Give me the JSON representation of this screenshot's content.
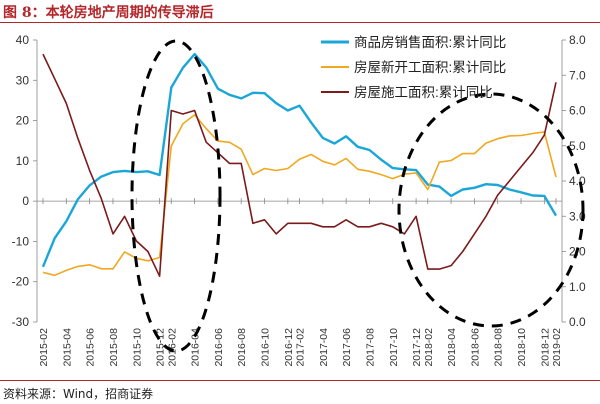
{
  "figure": {
    "title": "图 8：本轮房地产周期的传导滞后",
    "source": "资料来源：Wind，招商证券"
  },
  "chart_data": {
    "type": "line",
    "x": [
      "2015-02",
      "2015-03",
      "2015-04",
      "2015-05",
      "2015-06",
      "2015-07",
      "2015-08",
      "2015-09",
      "2015-10",
      "2015-11",
      "2015-12",
      "2016-02",
      "2016-03",
      "2016-04",
      "2016-05",
      "2016-06",
      "2016-07",
      "2016-08",
      "2016-09",
      "2016-10",
      "2016-11",
      "2016-12",
      "2017-02",
      "2017-03",
      "2017-04",
      "2017-05",
      "2017-06",
      "2017-07",
      "2017-08",
      "2017-09",
      "2017-10",
      "2017-11",
      "2017-12",
      "2018-02",
      "2018-03",
      "2018-04",
      "2018-05",
      "2018-06",
      "2018-07",
      "2018-08",
      "2018-09",
      "2018-10",
      "2018-11",
      "2018-12",
      "2019-02"
    ],
    "xticks": [
      "2015-02",
      "2015-04",
      "2015-06",
      "2015-08",
      "2015-10",
      "2015-12",
      "2016-02",
      "2016-04",
      "2016-06",
      "2016-08",
      "2016-10",
      "2016-12",
      "2017-02",
      "2017-04",
      "2017-06",
      "2017-08",
      "2017-10",
      "2017-12",
      "2018-02",
      "2018-04",
      "2018-06",
      "2018-08",
      "2018-10",
      "2018-12",
      "2019-02"
    ],
    "ylim_left": [
      -30,
      40
    ],
    "yticks_left": [
      -30,
      -20,
      -10,
      0,
      10,
      20,
      30,
      40
    ],
    "ylim_right": [
      0,
      8
    ],
    "yticks_right": [
      "0.0",
      "1.0",
      "2.0",
      "3.0",
      "4.0",
      "5.0",
      "6.0",
      "7.0",
      "8.0"
    ],
    "grid": false,
    "legend_position": "top-right",
    "series": [
      {
        "name": "商品房销售面积:累计同比",
        "axis": "left",
        "color": "#1aa7d8",
        "values": [
          -16.3,
          -9.2,
          -5.0,
          0.5,
          3.9,
          6.1,
          7.2,
          7.5,
          7.2,
          7.4,
          6.5,
          28.2,
          33.1,
          36.5,
          33.2,
          27.9,
          26.4,
          25.5,
          26.9,
          26.8,
          24.3,
          22.5,
          23.7,
          19.5,
          15.7,
          14.3,
          16.1,
          13.5,
          12.7,
          10.3,
          8.2,
          7.9,
          7.7,
          4.1,
          3.6,
          1.3,
          2.9,
          3.3,
          4.2,
          4.0,
          2.9,
          2.2,
          1.4,
          1.3,
          -3.6
        ]
      },
      {
        "name": "房屋新开工面积:累计同比",
        "axis": "left",
        "color": "#f0a820",
        "values": [
          -17.7,
          -18.4,
          -17.2,
          -16.2,
          -15.8,
          -16.8,
          -16.8,
          -12.6,
          -14.2,
          -14.8,
          -14.0,
          13.7,
          19.2,
          21.4,
          18.0,
          14.9,
          14.6,
          12.9,
          6.6,
          8.1,
          7.6,
          8.1,
          10.4,
          11.6,
          9.9,
          9.0,
          10.6,
          7.9,
          7.4,
          6.6,
          5.6,
          6.7,
          7.0,
          2.9,
          9.7,
          10.1,
          11.8,
          11.8,
          14.4,
          15.5,
          16.2,
          16.3,
          16.8,
          17.2,
          6.0
        ]
      },
      {
        "name": "房屋施工面积:累计同比",
        "axis": "right",
        "color": "#7b1b1b",
        "values": [
          7.6,
          6.9,
          6.2,
          5.2,
          4.3,
          3.5,
          2.5,
          3.0,
          2.3,
          2.0,
          1.3,
          6.0,
          5.9,
          6.0,
          5.1,
          4.8,
          4.5,
          4.5,
          2.8,
          2.9,
          2.5,
          2.8,
          2.8,
          2.8,
          2.7,
          2.7,
          2.9,
          2.7,
          2.7,
          2.8,
          2.7,
          2.5,
          3.0,
          1.5,
          1.5,
          1.6,
          2.0,
          2.5,
          3.0,
          3.6,
          4.0,
          4.4,
          4.8,
          5.3,
          6.8
        ]
      }
    ]
  }
}
